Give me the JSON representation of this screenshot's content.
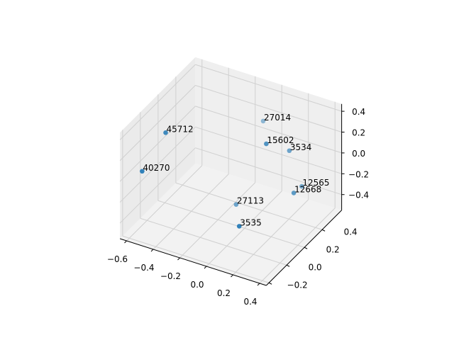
{
  "chart_data": {
    "type": "scatter",
    "projection": "3d",
    "title": "",
    "xlabel": "",
    "ylabel": "",
    "zlabel": "",
    "xlim": [
      -0.65,
      0.45
    ],
    "ylim": [
      -0.23,
      0.62
    ],
    "zlim": [
      -0.55,
      0.47
    ],
    "grid": true,
    "color": "#1f77b4",
    "x_ticks": [
      "−0.6",
      "−0.4",
      "−0.2",
      "0.0",
      "0.2",
      "0.4"
    ],
    "y_ticks": [
      "−0.2",
      "0.0",
      "0.2",
      "0.4"
    ],
    "z_ticks": [
      "−0.4",
      "−0.2",
      "0.0",
      "0.2",
      "0.4"
    ],
    "x_tick_values": [
      -0.6,
      -0.4,
      -0.2,
      0.0,
      0.2,
      0.4
    ],
    "y_tick_values": [
      -0.2,
      0.0,
      0.2,
      0.4
    ],
    "z_tick_values": [
      -0.4,
      -0.2,
      0.0,
      0.2,
      0.4
    ],
    "points": [
      {
        "label": "45712",
        "x": -0.46,
        "y": 0.0,
        "z": 0.35
      },
      {
        "label": "40270",
        "x": -0.57,
        "y": -0.1,
        "z": 0.02
      },
      {
        "label": "27014",
        "x": -0.06,
        "y": 0.5,
        "z": 0.2
      },
      {
        "label": "15602",
        "x": 0.23,
        "y": 0.1,
        "z": 0.44
      },
      {
        "label": "3534",
        "x": 0.27,
        "y": 0.3,
        "z": 0.22
      },
      {
        "label": "12565",
        "x": 0.33,
        "y": 0.35,
        "z": -0.14
      },
      {
        "label": "12668",
        "x": 0.37,
        "y": 0.2,
        "z": -0.06
      },
      {
        "label": "27113",
        "x": -0.13,
        "y": 0.3,
        "z": -0.46
      },
      {
        "label": "3535",
        "x": 0.16,
        "y": -0.1,
        "z": -0.21
      }
    ]
  }
}
